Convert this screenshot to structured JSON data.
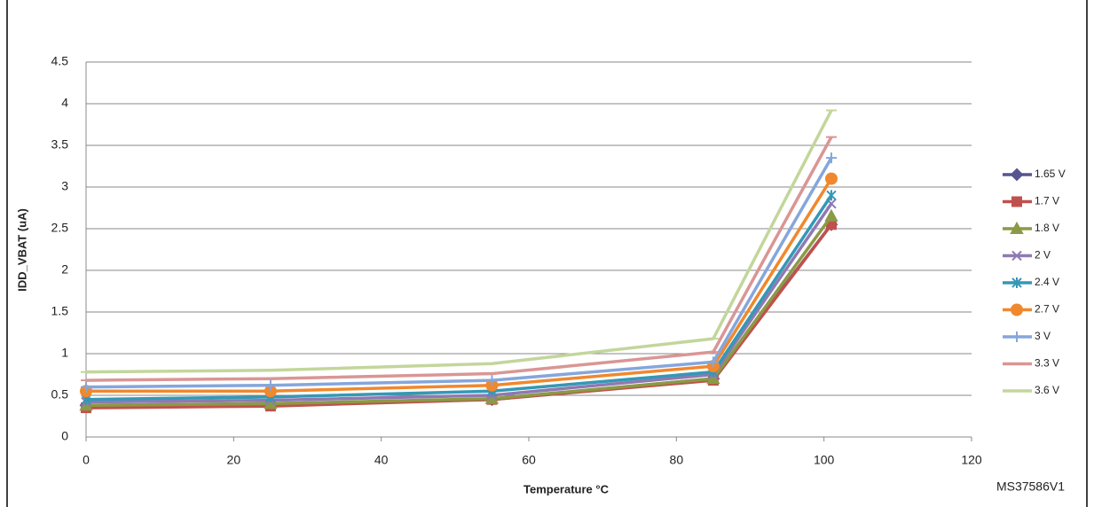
{
  "chart_data": {
    "type": "line",
    "x_label": "Temperature °C",
    "y_label": "IDD_VBAT (uA)",
    "annotation": "MS37586V1",
    "x": [
      0,
      25,
      55,
      85,
      101
    ],
    "xlim": [
      0,
      120
    ],
    "xticks": [
      0,
      20,
      40,
      60,
      80,
      100,
      120
    ],
    "ylim": [
      0,
      4.5
    ],
    "yticks": [
      0,
      0.5,
      1,
      1.5,
      2,
      2.5,
      3,
      3.5,
      4,
      4.5
    ],
    "grid": true,
    "legend": "right",
    "series": [
      {
        "name": "1.65 V",
        "color": "#56558f",
        "marker": "diamond",
        "values": [
          0.38,
          0.4,
          0.45,
          0.7,
          2.55
        ]
      },
      {
        "name": "1.7 V",
        "color": "#c0504d",
        "marker": "square",
        "values": [
          0.35,
          0.37,
          0.45,
          0.68,
          2.55
        ]
      },
      {
        "name": "1.8 V",
        "color": "#8b9a45",
        "marker": "triangle",
        "values": [
          0.38,
          0.4,
          0.46,
          0.7,
          2.65
        ]
      },
      {
        "name": "2 V",
        "color": "#8f79b3",
        "marker": "x",
        "values": [
          0.42,
          0.44,
          0.5,
          0.75,
          2.8
        ]
      },
      {
        "name": "2.4 V",
        "color": "#3498b5",
        "marker": "star",
        "values": [
          0.45,
          0.48,
          0.55,
          0.78,
          2.9
        ]
      },
      {
        "name": "2.7 V",
        "color": "#f0882d",
        "marker": "circle",
        "values": [
          0.55,
          0.55,
          0.62,
          0.85,
          3.1
        ]
      },
      {
        "name": "3 V",
        "color": "#85a6dc",
        "marker": "plus",
        "values": [
          0.6,
          0.62,
          0.68,
          0.9,
          3.35
        ]
      },
      {
        "name": "3.3 V",
        "color": "#d99694",
        "marker": "dash",
        "values": [
          0.68,
          0.7,
          0.76,
          1.02,
          3.6
        ]
      },
      {
        "name": "3.6 V",
        "color": "#c3d69b",
        "marker": "dash",
        "values": [
          0.78,
          0.8,
          0.88,
          1.18,
          3.92
        ]
      }
    ]
  }
}
